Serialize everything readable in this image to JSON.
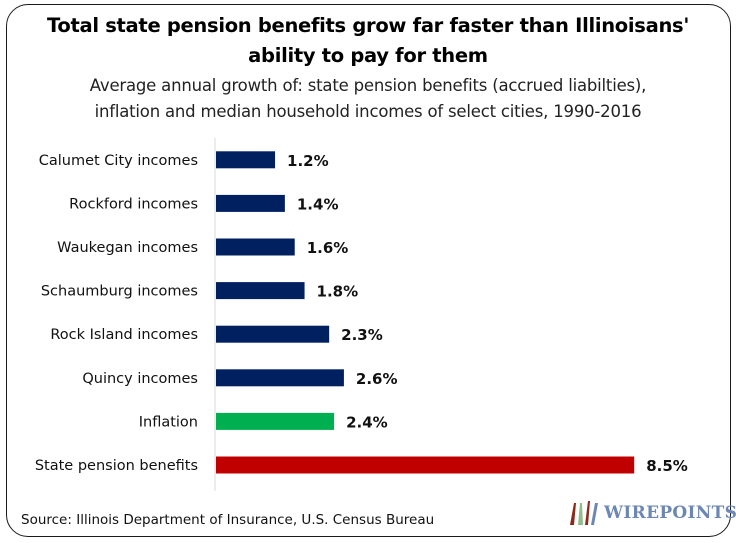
{
  "chart_data": {
    "type": "bar",
    "orientation": "horizontal",
    "title": "Total state pension benefits grow far faster than Illinoisans' ability to pay for them",
    "title_lines": [
      "Total state pension benefits grow far faster than Illinoisans'",
      "ability to pay for them"
    ],
    "subtitle_lines": [
      "Average annual growth of: state pension benefits (accrued liabilties),",
      "inflation and median household incomes of select cities, 1990-2016"
    ],
    "xlabel": "",
    "ylabel": "",
    "xlim": [
      0,
      9
    ],
    "grid": false,
    "legend": "none",
    "unit": "%",
    "categories": [
      "Calumet City incomes",
      "Rockford incomes",
      "Waukegan incomes",
      "Schaumburg incomes",
      "Rock Island incomes",
      "Quincy incomes",
      "Inflation",
      "State pension benefits"
    ],
    "values": [
      1.2,
      1.4,
      1.6,
      1.8,
      2.3,
      2.6,
      2.4,
      8.5
    ],
    "data_labels": [
      "1.2%",
      "1.4%",
      "1.6%",
      "1.8%",
      "2.3%",
      "2.6%",
      "2.4%",
      "8.5%"
    ],
    "colors": [
      "#002060",
      "#002060",
      "#002060",
      "#002060",
      "#002060",
      "#002060",
      "#00b050",
      "#c00000"
    ]
  },
  "footer": {
    "source": "Source: Illinois Department of Insurance, U.S.  Census Bureau",
    "logo_text": "WIREPOINTS"
  },
  "colors": {
    "axis": "#d9d9d9",
    "logo_text": "#6d87b3",
    "logo_red": "#8b2a1a",
    "logo_green": "#8fbf8a",
    "logo_blue": "#6d87b3"
  }
}
